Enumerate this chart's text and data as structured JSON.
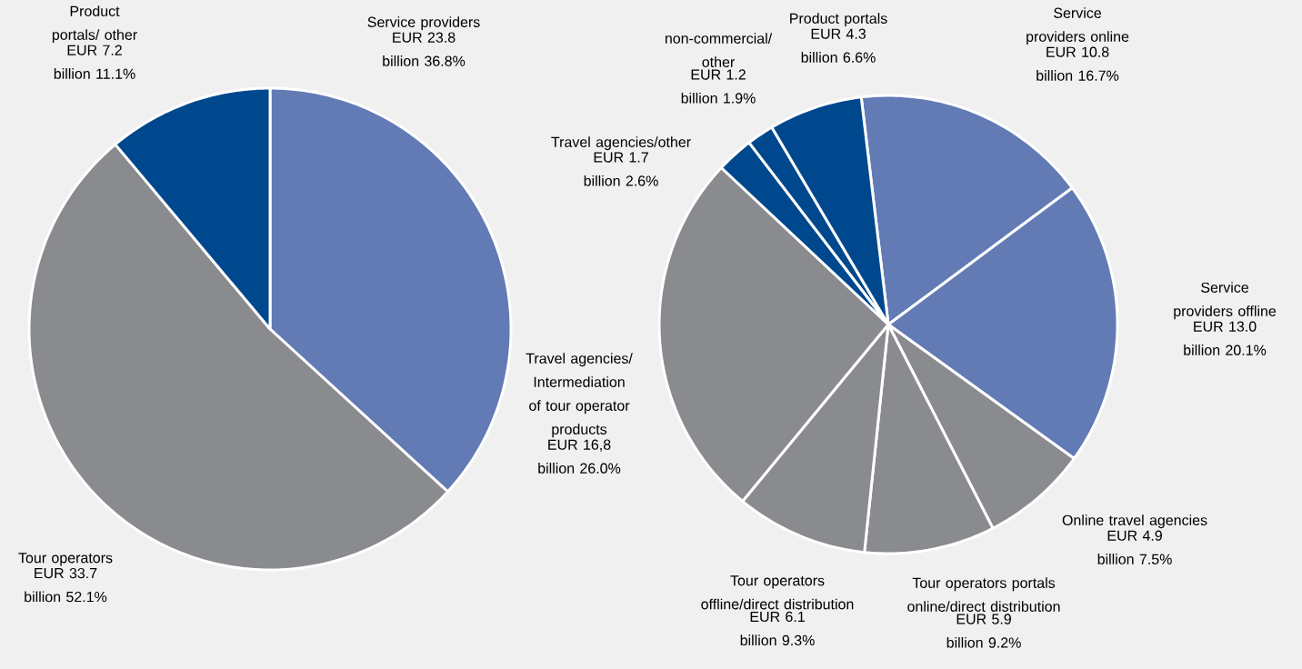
{
  "chart_data": [
    {
      "type": "pie",
      "categories": [
        "Service providers",
        "Tour operators",
        "Product portals/ other"
      ],
      "values": [
        36.8,
        52.1,
        11.1
      ],
      "colors": [
        "#627bb5",
        "#8a8b8f",
        "#00488e"
      ],
      "value_labels": [
        "EUR 23.8 billion 36.8%",
        "EUR 33.7 billion 52.1%",
        "EUR 7.2 billion 11.1%"
      ]
    },
    {
      "type": "pie",
      "categories": [
        "Service providers online",
        "Service providers offline",
        "Online travel agencies",
        "Tour operators portals online/direct distribution",
        "Tour operators offline/direct distribution",
        "Travel agencies/ Intermediation of tour operator products",
        "Travel agencies/other",
        "non-commercial/ other",
        "Product portals"
      ],
      "values": [
        16.7,
        20.1,
        7.5,
        9.2,
        9.3,
        26.0,
        2.6,
        1.9,
        6.6
      ],
      "colors": [
        "#627bb5",
        "#627bb5",
        "#8a8b8f",
        "#8a8b8f",
        "#8a8b8f",
        "#8a8b8f",
        "#00488e",
        "#00488e",
        "#00488e"
      ],
      "value_labels": [
        "EUR 10.8 billion 16.7%",
        "EUR 13.0 billion 20.1%",
        "EUR 4.9 billion 7.5%",
        "EUR 5.9 billion 9.2%",
        "EUR 6.1 billion 9.3%",
        "EUR 16,8 billion 26.0%",
        "EUR 1.7 billion 2.6%",
        "EUR 1.2 billion 1.9%",
        "EUR 4.3 billion 6.6%"
      ]
    }
  ]
}
